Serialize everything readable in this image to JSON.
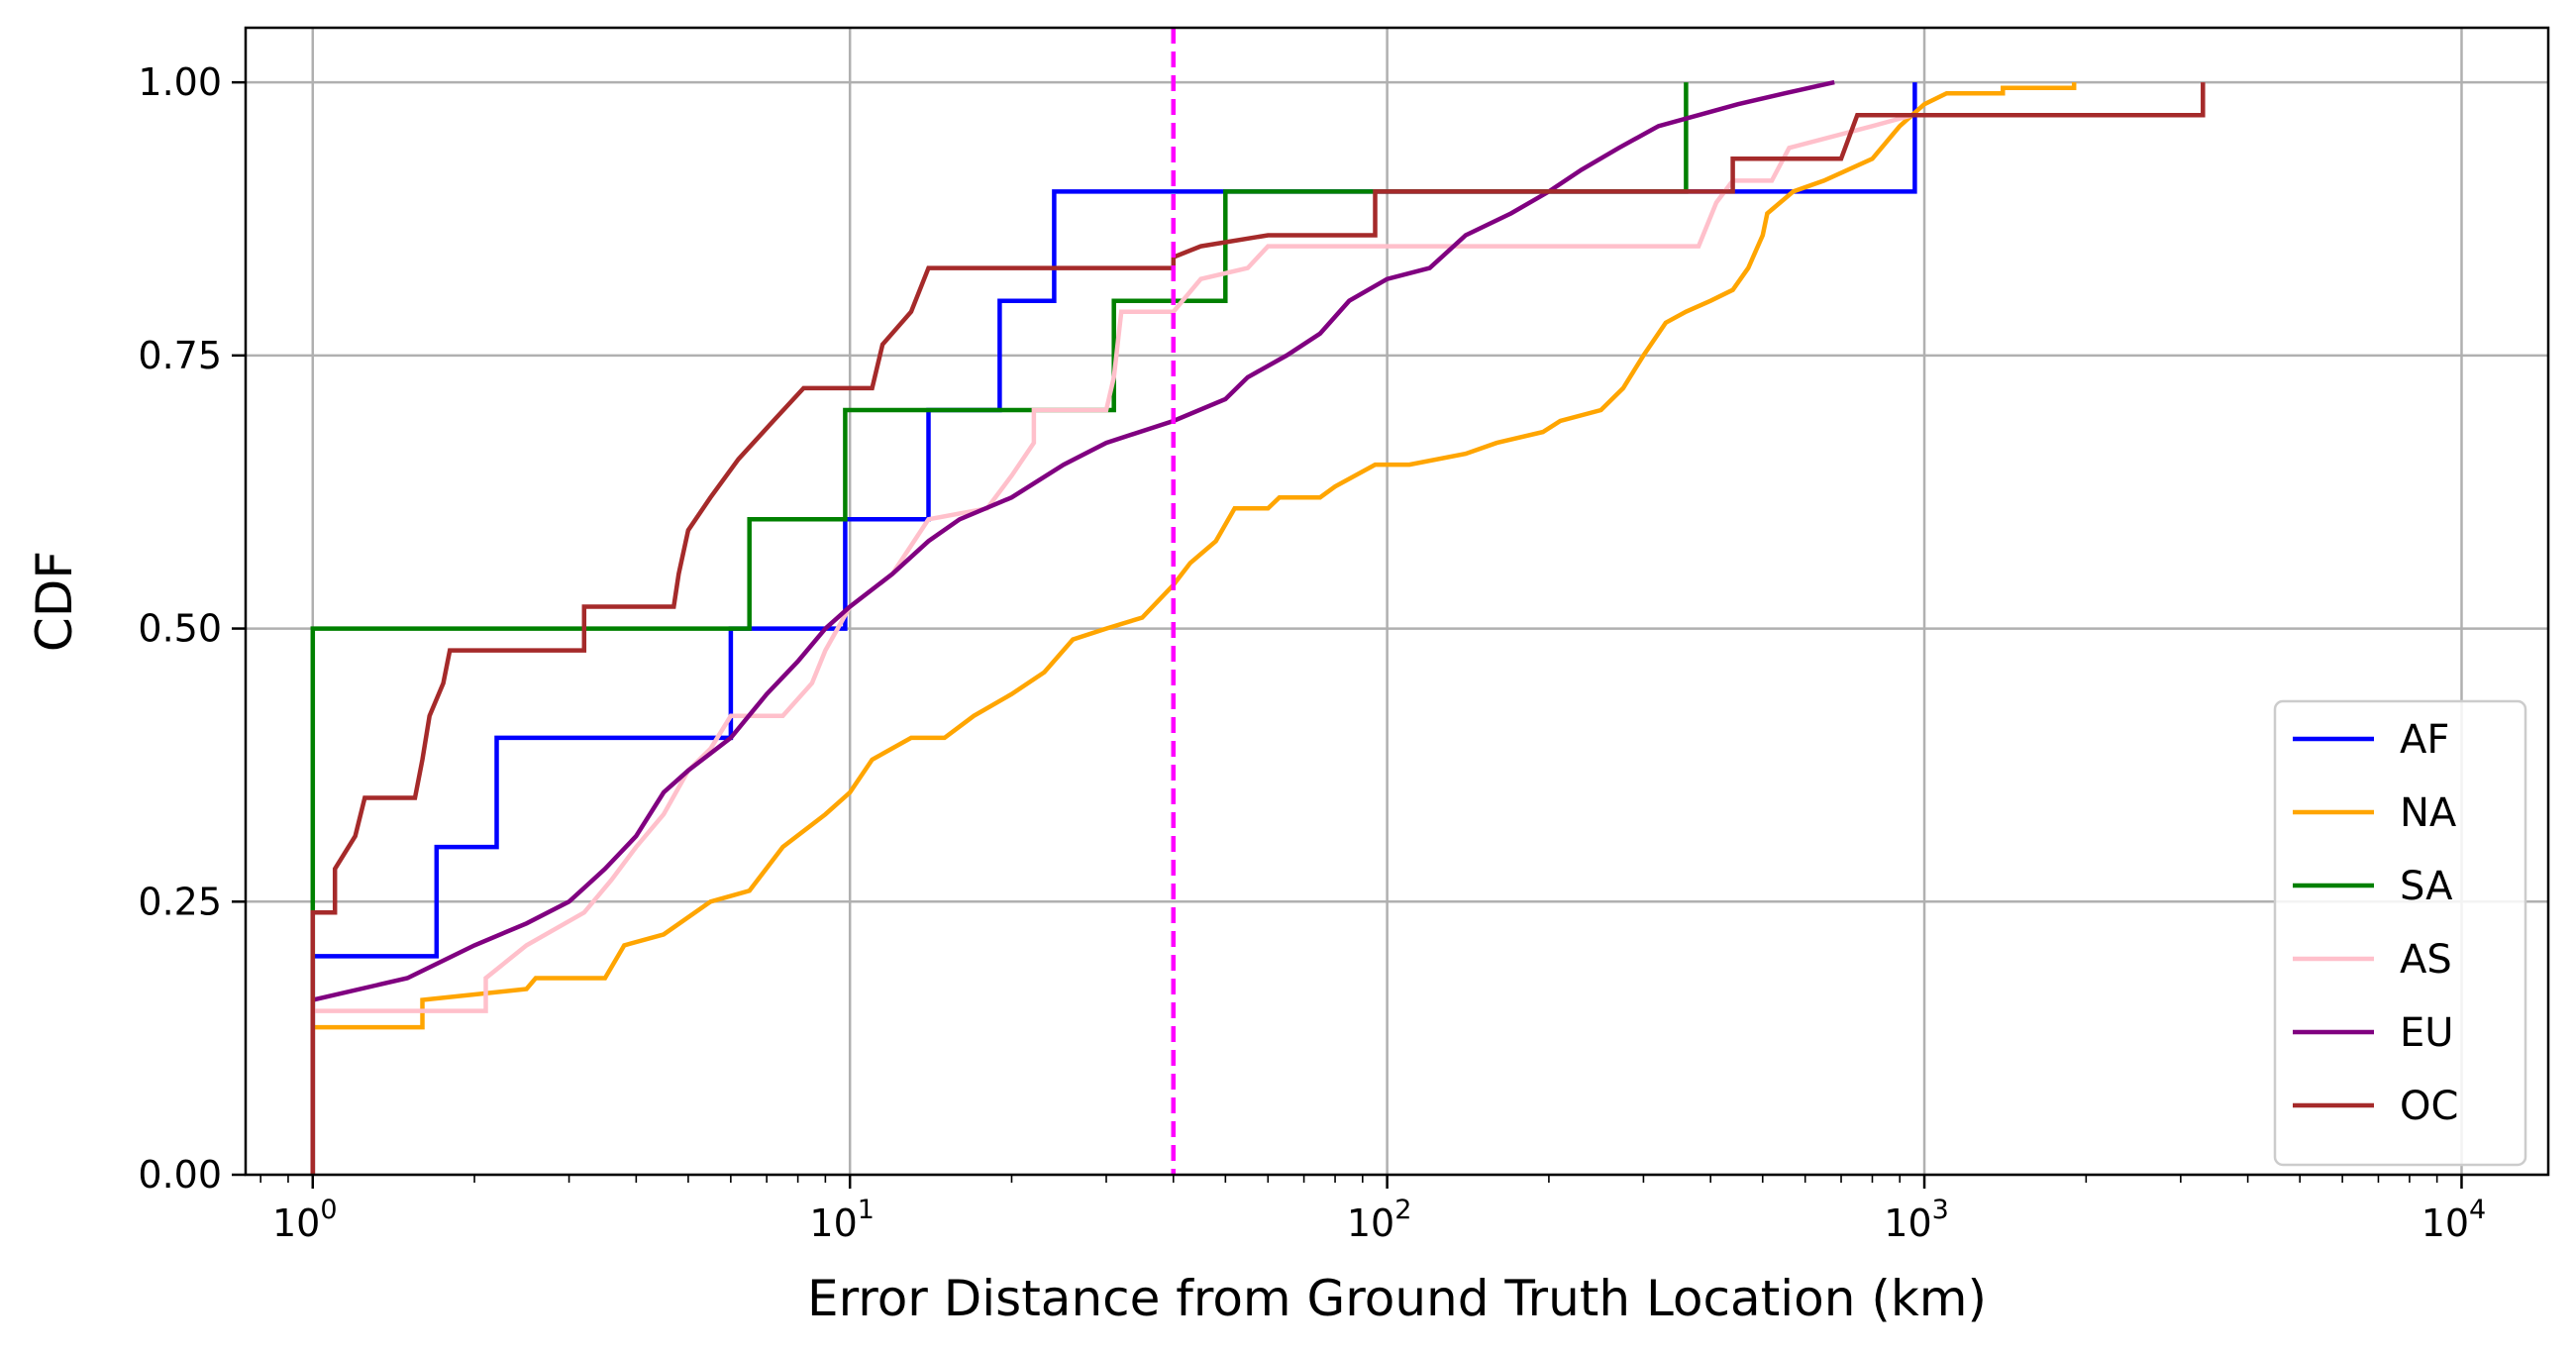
{
  "chart_data": {
    "type": "line",
    "xlabel": "Error Distance from Ground Truth Location (km)",
    "ylabel": "CDF",
    "xscale": "log",
    "xlim": [
      0.75,
      14500
    ],
    "ylim": [
      0.0,
      1.05
    ],
    "x_ticks": [
      {
        "value": 1,
        "base": "10",
        "exp": "0"
      },
      {
        "value": 10,
        "base": "10",
        "exp": "1"
      },
      {
        "value": 100,
        "base": "10",
        "exp": "2"
      },
      {
        "value": 1000,
        "base": "10",
        "exp": "3"
      },
      {
        "value": 10000,
        "base": "10",
        "exp": "4"
      }
    ],
    "y_ticks": [
      {
        "value": 0.0,
        "label": "0.00"
      },
      {
        "value": 0.25,
        "label": "0.25"
      },
      {
        "value": 0.5,
        "label": "0.50"
      },
      {
        "value": 0.75,
        "label": "0.75"
      },
      {
        "value": 1.0,
        "label": "1.00"
      }
    ],
    "grid": true,
    "legend_position": "lower-right",
    "reference_line": {
      "x": 40,
      "color": "#ff00ff",
      "style": "dashed"
    },
    "series": [
      {
        "name": "AF",
        "color": "#0000ff",
        "points": [
          [
            1,
            0
          ],
          [
            1,
            0.2
          ],
          [
            1.7,
            0.2
          ],
          [
            1.7,
            0.3
          ],
          [
            2.2,
            0.3
          ],
          [
            2.2,
            0.4
          ],
          [
            6,
            0.4
          ],
          [
            6,
            0.5
          ],
          [
            9.8,
            0.5
          ],
          [
            9.8,
            0.6
          ],
          [
            14,
            0.6
          ],
          [
            14,
            0.7
          ],
          [
            19,
            0.7
          ],
          [
            19,
            0.8
          ],
          [
            24,
            0.8
          ],
          [
            24,
            0.9
          ],
          [
            960,
            0.9
          ],
          [
            960,
            1.0
          ]
        ]
      },
      {
        "name": "NA",
        "color": "#ffa500",
        "points": [
          [
            1,
            0
          ],
          [
            1,
            0.135
          ],
          [
            1.6,
            0.135
          ],
          [
            1.6,
            0.16
          ],
          [
            2.5,
            0.17
          ],
          [
            2.6,
            0.18
          ],
          [
            3.5,
            0.18
          ],
          [
            3.8,
            0.21
          ],
          [
            4.5,
            0.22
          ],
          [
            5.5,
            0.25
          ],
          [
            6.5,
            0.26
          ],
          [
            7.5,
            0.3
          ],
          [
            9,
            0.33
          ],
          [
            10,
            0.35
          ],
          [
            11,
            0.38
          ],
          [
            13,
            0.4
          ],
          [
            15,
            0.4
          ],
          [
            17,
            0.42
          ],
          [
            20,
            0.44
          ],
          [
            23,
            0.46
          ],
          [
            26,
            0.49
          ],
          [
            30,
            0.5
          ],
          [
            35,
            0.51
          ],
          [
            40,
            0.54
          ],
          [
            43,
            0.56
          ],
          [
            48,
            0.58
          ],
          [
            52,
            0.61
          ],
          [
            60,
            0.61
          ],
          [
            63,
            0.62
          ],
          [
            75,
            0.62
          ],
          [
            80,
            0.63
          ],
          [
            95,
            0.65
          ],
          [
            110,
            0.65
          ],
          [
            140,
            0.66
          ],
          [
            160,
            0.67
          ],
          [
            195,
            0.68
          ],
          [
            210,
            0.69
          ],
          [
            250,
            0.7
          ],
          [
            275,
            0.72
          ],
          [
            300,
            0.75
          ],
          [
            330,
            0.78
          ],
          [
            360,
            0.79
          ],
          [
            400,
            0.8
          ],
          [
            440,
            0.81
          ],
          [
            470,
            0.83
          ],
          [
            500,
            0.86
          ],
          [
            510,
            0.88
          ],
          [
            570,
            0.9
          ],
          [
            650,
            0.91
          ],
          [
            800,
            0.93
          ],
          [
            900,
            0.96
          ],
          [
            1000,
            0.98
          ],
          [
            1100,
            0.99
          ],
          [
            1400,
            0.99
          ],
          [
            1400,
            0.995
          ],
          [
            1900,
            0.995
          ],
          [
            1900,
            1.0
          ]
        ]
      },
      {
        "name": "SA",
        "color": "#008000",
        "points": [
          [
            1,
            0
          ],
          [
            1,
            0.5
          ],
          [
            6.5,
            0.5
          ],
          [
            6.5,
            0.6
          ],
          [
            9.8,
            0.6
          ],
          [
            9.8,
            0.7
          ],
          [
            31,
            0.7
          ],
          [
            31,
            0.8
          ],
          [
            50,
            0.8
          ],
          [
            50,
            0.9
          ],
          [
            360,
            0.9
          ],
          [
            360,
            1.0
          ]
        ]
      },
      {
        "name": "AS",
        "color": "#ffc0cb",
        "points": [
          [
            1,
            0
          ],
          [
            1,
            0.15
          ],
          [
            1.6,
            0.15
          ],
          [
            2.1,
            0.15
          ],
          [
            2.1,
            0.18
          ],
          [
            2.5,
            0.21
          ],
          [
            3.2,
            0.24
          ],
          [
            3.6,
            0.27
          ],
          [
            4,
            0.3
          ],
          [
            4.5,
            0.33
          ],
          [
            5,
            0.37
          ],
          [
            5.5,
            0.39
          ],
          [
            6,
            0.42
          ],
          [
            7.5,
            0.42
          ],
          [
            8.5,
            0.45
          ],
          [
            9,
            0.48
          ],
          [
            10,
            0.52
          ],
          [
            12,
            0.55
          ],
          [
            14,
            0.6
          ],
          [
            18,
            0.61
          ],
          [
            20,
            0.64
          ],
          [
            22,
            0.67
          ],
          [
            22,
            0.7
          ],
          [
            30,
            0.7
          ],
          [
            31,
            0.73
          ],
          [
            32,
            0.79
          ],
          [
            40,
            0.79
          ],
          [
            45,
            0.82
          ],
          [
            55,
            0.83
          ],
          [
            60,
            0.85
          ],
          [
            100,
            0.85
          ],
          [
            250,
            0.85
          ],
          [
            380,
            0.85
          ],
          [
            410,
            0.89
          ],
          [
            440,
            0.91
          ],
          [
            520,
            0.91
          ],
          [
            560,
            0.94
          ],
          [
            800,
            0.96
          ],
          [
            950,
            0.97
          ],
          [
            3300,
            0.97
          ],
          [
            3300,
            1.0
          ]
        ]
      },
      {
        "name": "EU",
        "color": "#800080",
        "points": [
          [
            1,
            0
          ],
          [
            1,
            0.16
          ],
          [
            1.5,
            0.18
          ],
          [
            2,
            0.21
          ],
          [
            2.5,
            0.23
          ],
          [
            3,
            0.25
          ],
          [
            3.5,
            0.28
          ],
          [
            4,
            0.31
          ],
          [
            4.5,
            0.35
          ],
          [
            5,
            0.37
          ],
          [
            6,
            0.4
          ],
          [
            7,
            0.44
          ],
          [
            8,
            0.47
          ],
          [
            9,
            0.5
          ],
          [
            10,
            0.52
          ],
          [
            12,
            0.55
          ],
          [
            14,
            0.58
          ],
          [
            16,
            0.6
          ],
          [
            20,
            0.62
          ],
          [
            25,
            0.65
          ],
          [
            30,
            0.67
          ],
          [
            40,
            0.69
          ],
          [
            50,
            0.71
          ],
          [
            55,
            0.73
          ],
          [
            65,
            0.75
          ],
          [
            75,
            0.77
          ],
          [
            85,
            0.8
          ],
          [
            100,
            0.82
          ],
          [
            120,
            0.83
          ],
          [
            140,
            0.86
          ],
          [
            170,
            0.88
          ],
          [
            200,
            0.9
          ],
          [
            230,
            0.92
          ],
          [
            270,
            0.94
          ],
          [
            320,
            0.96
          ],
          [
            380,
            0.97
          ],
          [
            450,
            0.98
          ],
          [
            550,
            0.99
          ],
          [
            680,
            1.0
          ]
        ]
      },
      {
        "name": "OC",
        "color": "#a52a2a",
        "points": [
          [
            1,
            0
          ],
          [
            1,
            0.24
          ],
          [
            1.1,
            0.24
          ],
          [
            1.1,
            0.28
          ],
          [
            1.2,
            0.31
          ],
          [
            1.25,
            0.345
          ],
          [
            1.55,
            0.345
          ],
          [
            1.6,
            0.38
          ],
          [
            1.65,
            0.42
          ],
          [
            1.75,
            0.45
          ],
          [
            1.8,
            0.48
          ],
          [
            3.2,
            0.48
          ],
          [
            3.2,
            0.52
          ],
          [
            4.7,
            0.52
          ],
          [
            4.8,
            0.55
          ],
          [
            5.0,
            0.59
          ],
          [
            5.5,
            0.62
          ],
          [
            6.2,
            0.655
          ],
          [
            7.2,
            0.69
          ],
          [
            8.2,
            0.72
          ],
          [
            11,
            0.72
          ],
          [
            11.5,
            0.76
          ],
          [
            13,
            0.79
          ],
          [
            14,
            0.83
          ],
          [
            40,
            0.83
          ],
          [
            40,
            0.84
          ],
          [
            45,
            0.85
          ],
          [
            60,
            0.86
          ],
          [
            95,
            0.86
          ],
          [
            95,
            0.9
          ],
          [
            440,
            0.9
          ],
          [
            440,
            0.93
          ],
          [
            700,
            0.93
          ],
          [
            750,
            0.97
          ],
          [
            3300,
            0.97
          ],
          [
            3300,
            1.0
          ]
        ]
      }
    ]
  }
}
